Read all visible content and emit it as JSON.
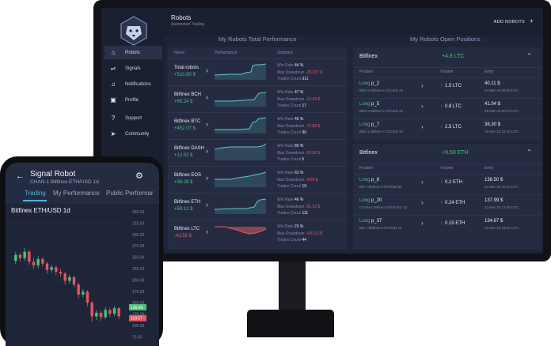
{
  "app": {
    "title": "Robots",
    "subtitle": "Automated Trading",
    "add_label": "ADD ROBOTS",
    "add_icon": "+"
  },
  "sidebar": {
    "items": [
      {
        "label": "Robots",
        "icon": "robot-icon",
        "glyph": "⌂"
      },
      {
        "label": "Signals",
        "icon": "signals-icon",
        "glyph": "⇌"
      },
      {
        "label": "Notifications",
        "icon": "bell-icon",
        "glyph": "♫"
      },
      {
        "label": "Profile",
        "icon": "profile-icon",
        "glyph": "▣"
      },
      {
        "label": "Support",
        "icon": "help-icon",
        "glyph": "?"
      },
      {
        "label": "Community",
        "icon": "send-icon",
        "glyph": "➤"
      }
    ]
  },
  "performance": {
    "title": "My Robots Total Performance",
    "headers": {
      "name": "Name",
      "performance": "Performance",
      "statistics": "Statistics"
    },
    "labels": {
      "win_rate": "Win Rate",
      "max_drawdown": "Max Drawdown",
      "trades_count": "Trades Count"
    },
    "rows": [
      {
        "name": "Total robots",
        "value": "+510.80 $",
        "win_rate": "44 %",
        "max_drawdown": "-252.87 $",
        "trades": "311"
      },
      {
        "name": "Bitfinex BCH",
        "value": "+60.24 $",
        "win_rate": "47 %",
        "max_drawdown": "-10.43 $",
        "trades": "17"
      },
      {
        "name": "Bitfinex BTC",
        "value": "+452.07 $",
        "win_rate": "46 %",
        "max_drawdown": "-72.88 $",
        "trades": "90"
      },
      {
        "name": "Bitfinex DASH",
        "value": "+12.02 $",
        "win_rate": "80 %",
        "max_drawdown": "-26.66 $",
        "trades": "5"
      },
      {
        "name": "Bitfinex EOS",
        "value": "+39.28 $",
        "win_rate": "63 %",
        "max_drawdown": "-4.55 $",
        "trades": "16"
      },
      {
        "name": "Bitfinex ETH",
        "value": "+59.12 $",
        "win_rate": "46 %",
        "max_drawdown": "-91.12 $",
        "trades": "111"
      },
      {
        "name": "Bitfinex LTC",
        "value": "-42.56 $",
        "win_rate": "23 %",
        "max_drawdown": "-100.13 $",
        "trades": "44"
      }
    ]
  },
  "positions": {
    "title": "My Robots Open Positions",
    "headers": {
      "position": "Position",
      "volume": "Volume",
      "entry": "Entry"
    },
    "groups": [
      {
        "exchange": "Bitfinex",
        "gain": "+4.8 LTC",
        "rows": [
          {
            "side": "Long",
            "name": "p_2",
            "sub": "BR2-2 Bitfinex LTC/USD 2h",
            "volume": "1.5 LTC",
            "entry": "40.11 $",
            "date": "24 Mar 20 08:00 UTC"
          },
          {
            "side": "Long",
            "name": "p_5",
            "sub": "BR2-4 Bitfinex LTC/USD 2h",
            "volume": "0.8 LTC",
            "entry": "41.04 $",
            "date": "25 Mar 20 00:13 UTC"
          },
          {
            "side": "Long",
            "name": "p_7",
            "sub": "BR2-1 Bitfinex LTC/USD 1h",
            "volume": "2.5 LTC",
            "entry": "36.30 $",
            "date": "19 Mar 20 12:10 UTC"
          }
        ]
      },
      {
        "exchange": "Bitfinex",
        "gain": "+0.59 ETH",
        "rows": [
          {
            "side": "Long",
            "name": "p_8",
            "sub": "BR-2 Bitfinex ETH/USD 6h",
            "volume": "0.2 ETH",
            "entry": "138.50 $",
            "date": "24 Mar 20 06:20 UTC"
          },
          {
            "side": "Long",
            "name": "p_20",
            "sub": "CHAN-1 Bitfinex ETH/USD 1d",
            "volume": "0.24 ETH",
            "entry": "137.99 $",
            "date": "23 Mar 20 13:06 UTC"
          },
          {
            "side": "Long",
            "name": "p_37",
            "sub": "BR-1 Bitfinex ETH/USD 1h",
            "volume": "0.15 ETH",
            "entry": "134.87 $",
            "date": "23 Mar 20 13:02 UTC"
          }
        ]
      }
    ]
  },
  "phone": {
    "title": "Signal Robot",
    "subtitle": "CHAN-1 Bitfinex ETH/USD 1d",
    "tabs": [
      "Trading",
      "My Performance",
      "Public Performar"
    ],
    "pair": "Bitfinex ETH/USD 1d",
    "chart_data": {
      "type": "candlestick",
      "y_ticks": [
        "350.00",
        "325.00",
        "300.00",
        "275.00",
        "250.00",
        "225.00",
        "200.00",
        "175.00",
        "150.00",
        "125.00",
        "100.00",
        "75.00"
      ],
      "price_tags": [
        {
          "label": "136.48",
          "color": "#4fbf7a"
        },
        {
          "label": "119.57",
          "color": "#e05765"
        }
      ],
      "candles": [
        {
          "o": 242,
          "c": 255,
          "h": 262,
          "l": 235
        },
        {
          "o": 255,
          "c": 248,
          "h": 260,
          "l": 240
        },
        {
          "o": 248,
          "c": 262,
          "h": 270,
          "l": 242
        },
        {
          "o": 262,
          "c": 240,
          "h": 266,
          "l": 233
        },
        {
          "o": 240,
          "c": 232,
          "h": 248,
          "l": 224
        },
        {
          "o": 232,
          "c": 246,
          "h": 252,
          "l": 226
        },
        {
          "o": 246,
          "c": 236,
          "h": 250,
          "l": 230
        },
        {
          "o": 236,
          "c": 222,
          "h": 240,
          "l": 214
        },
        {
          "o": 222,
          "c": 228,
          "h": 234,
          "l": 216
        },
        {
          "o": 228,
          "c": 218,
          "h": 232,
          "l": 210
        },
        {
          "o": 218,
          "c": 214,
          "h": 224,
          "l": 206
        },
        {
          "o": 214,
          "c": 198,
          "h": 218,
          "l": 190
        },
        {
          "o": 198,
          "c": 206,
          "h": 212,
          "l": 192
        },
        {
          "o": 206,
          "c": 190,
          "h": 210,
          "l": 184
        },
        {
          "o": 190,
          "c": 168,
          "h": 194,
          "l": 160
        },
        {
          "o": 168,
          "c": 174,
          "h": 180,
          "l": 162
        },
        {
          "o": 174,
          "c": 150,
          "h": 178,
          "l": 142
        },
        {
          "o": 150,
          "c": 120,
          "h": 154,
          "l": 108
        },
        {
          "o": 120,
          "c": 128,
          "h": 134,
          "l": 112
        },
        {
          "o": 128,
          "c": 118,
          "h": 132,
          "l": 110
        },
        {
          "o": 118,
          "c": 134,
          "h": 140,
          "l": 114
        },
        {
          "o": 134,
          "c": 126,
          "h": 138,
          "l": 118
        },
        {
          "o": 126,
          "c": 138,
          "h": 142,
          "l": 120
        },
        {
          "o": 138,
          "c": 120,
          "h": 140,
          "l": 114
        }
      ]
    }
  },
  "colors": {
    "positive": "#4fbf7a",
    "negative": "#e05765",
    "accent": "#4fb3e0"
  }
}
